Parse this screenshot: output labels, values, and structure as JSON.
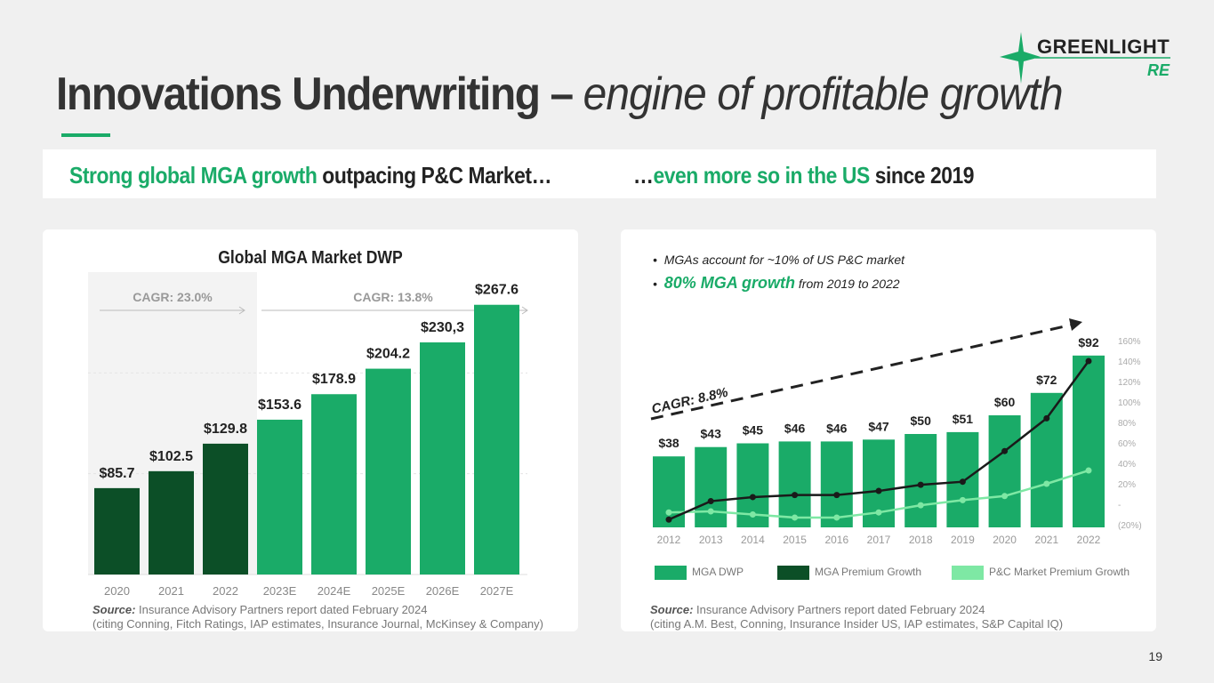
{
  "header": {
    "title_bold": "Innovations Underwriting –",
    "title_italic": "engine of profitable growth",
    "logo_text": "GREENLIGHT",
    "logo_sub": "RE"
  },
  "banner": {
    "left_green": "Strong global MGA growth",
    "left_dark": "outpacing P&C Market…",
    "right_prefix": "…",
    "right_green": "even more so in the US",
    "right_dark": "since 2019"
  },
  "left_panel": {
    "cagr_1": "CAGR: 23.0%",
    "cagr_2": "CAGR: 13.8%",
    "source_label": "Source:",
    "source_text": "Insurance Advisory Partners report dated February 2024",
    "source_cite": "(citing Conning, Fitch Ratings, IAP estimates, Insurance Journal, McKinsey & Company)"
  },
  "right_panel": {
    "bullet_1": "MGAs account for ~10% of US P&C market",
    "bullet_2_green": "80% MGA growth",
    "bullet_2_rest": "from  2019 to 2022",
    "cagr": "CAGR: 8.8%",
    "legend": [
      "MGA DWP",
      "MGA Premium Growth",
      "P&C Market Premium Growth"
    ],
    "source_label": "Source:",
    "source_text": "Insurance Advisory Partners report dated February 2024",
    "source_cite": "(citing A.M. Best, Conning, Insurance Insider US, IAP estimates, S&P Capital IQ)"
  },
  "page_number": "19",
  "colors": {
    "accent": "#1aab68",
    "dark_green": "#0c4f27",
    "light_green": "#7ee8a4",
    "title": "#333333"
  },
  "chart_data": [
    {
      "type": "bar",
      "title": "Global MGA Market DWP",
      "categories": [
        "2020",
        "2021",
        "2022",
        "2023E",
        "2024E",
        "2025E",
        "2026E",
        "2027E"
      ],
      "values": [
        85.7,
        102.5,
        129.8,
        153.6,
        178.9,
        204.2,
        230.3,
        267.6
      ],
      "labels": [
        "$85.7",
        "$102.5",
        "$129.8",
        "$153.6",
        "$178.9",
        "$204.2",
        "$230,3",
        "$267.6"
      ],
      "historical_count": 3,
      "ylim": [
        0,
        300
      ],
      "grid": true
    },
    {
      "type": "bar",
      "categories": [
        "2012",
        "2013",
        "2014",
        "2015",
        "2016",
        "2017",
        "2018",
        "2019",
        "2020",
        "2021",
        "2022"
      ],
      "values": [
        38,
        43,
        45,
        46,
        46,
        47,
        50,
        51,
        60,
        72,
        92
      ],
      "labels": [
        "$38",
        "$43",
        "$45",
        "$46",
        "$46",
        "$47",
        "$50",
        "$51",
        "$60",
        "$72",
        "$92"
      ],
      "ylim": [
        0,
        100
      ],
      "secondary_axis": {
        "ticks": [
          "160%",
          "140%",
          "120%",
          "100%",
          "80%",
          "60%",
          "40%",
          "20%",
          "-",
          "(20%)"
        ],
        "range": [
          -20,
          160
        ]
      },
      "series": [
        {
          "name": "MGA DWP",
          "type": "bar",
          "values": [
            38,
            43,
            45,
            46,
            46,
            47,
            50,
            51,
            60,
            72,
            92
          ]
        },
        {
          "name": "MGA Premium Growth",
          "type": "line",
          "axis": "secondary",
          "values": [
            -15,
            3,
            7,
            9,
            9,
            13,
            19,
            22,
            52,
            84,
            140
          ]
        },
        {
          "name": "P&C Market Premium Growth",
          "type": "line",
          "axis": "secondary",
          "values": [
            -8,
            -7,
            -10,
            -13,
            -13,
            -8,
            -1,
            4,
            8,
            20,
            33
          ]
        }
      ]
    }
  ]
}
